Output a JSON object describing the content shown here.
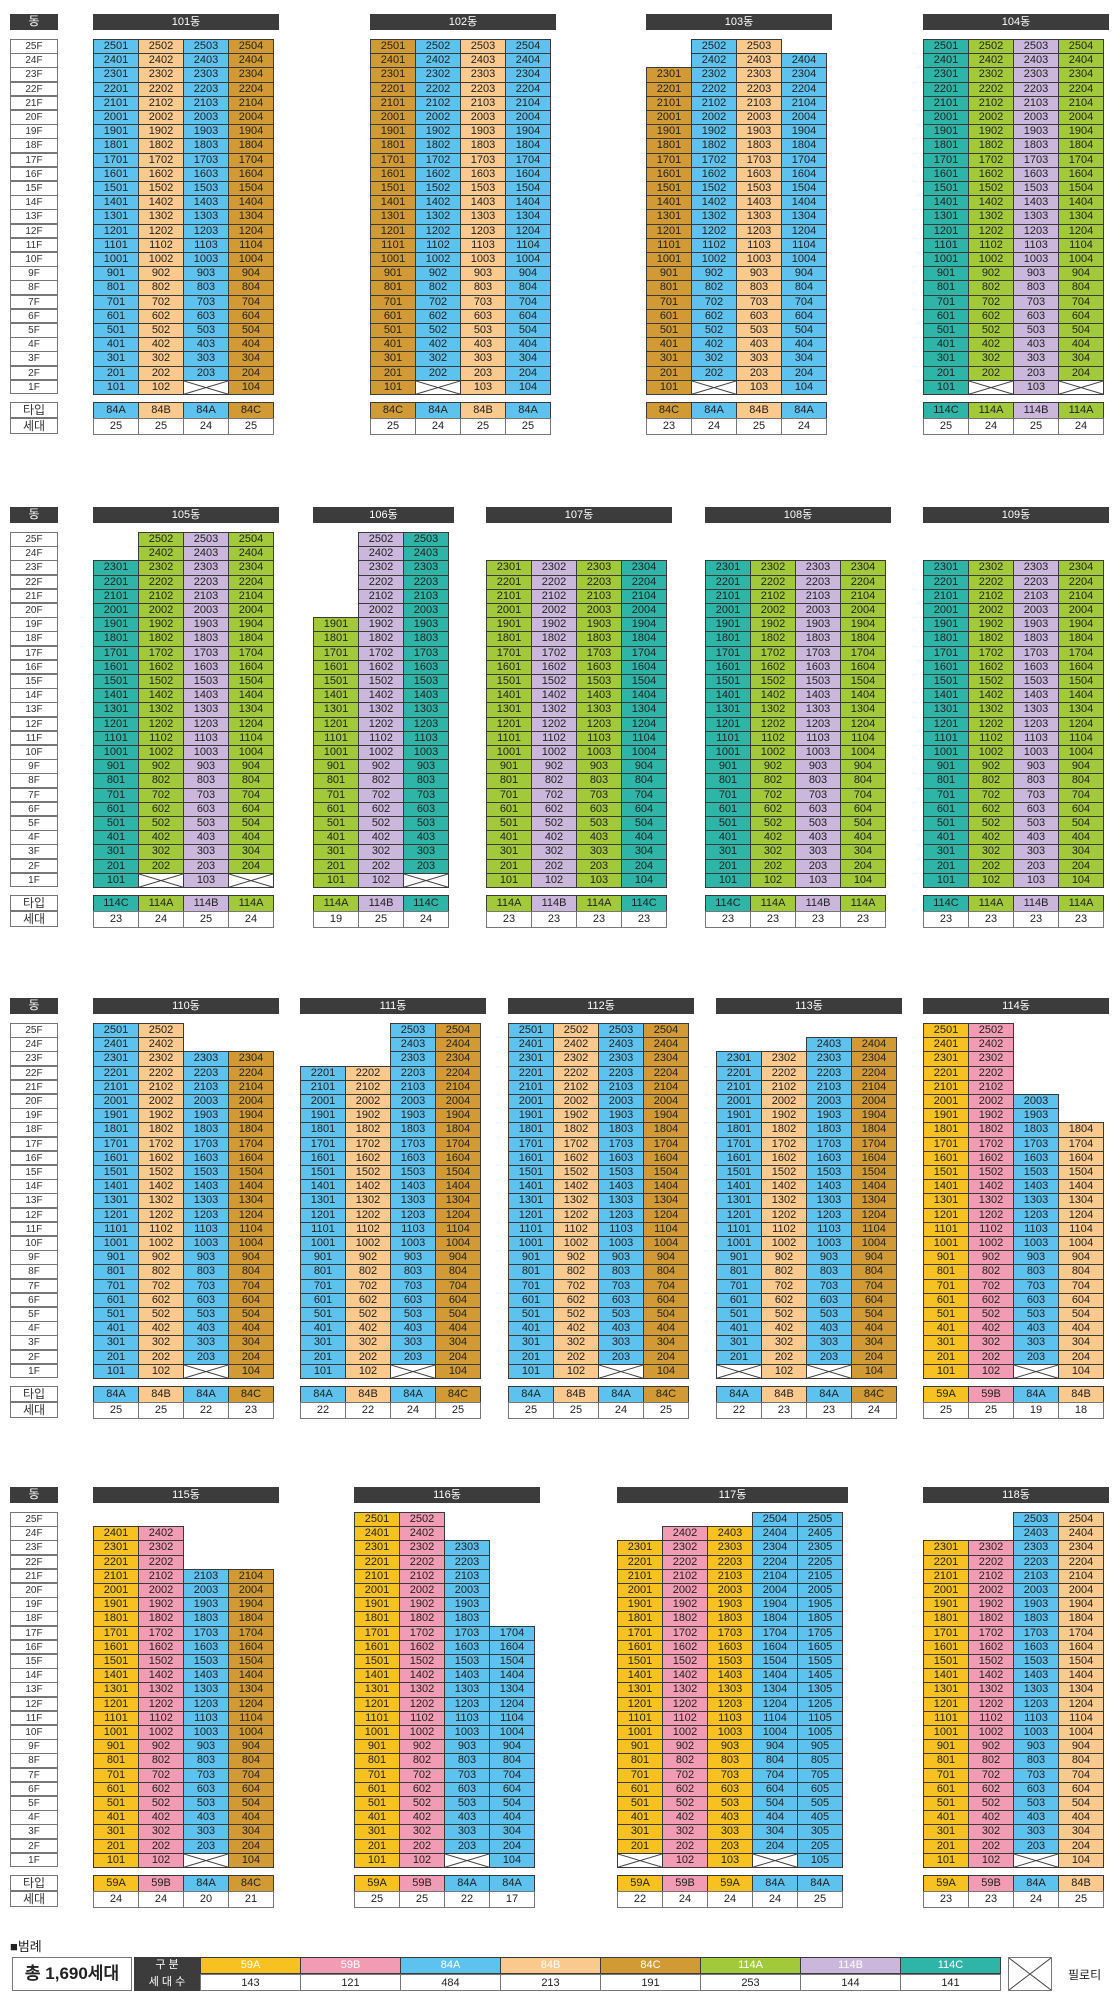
{
  "labels": {
    "dong": "동",
    "type": "타입",
    "households": "세대"
  },
  "floors": [
    "25F",
    "24F",
    "23F",
    "22F",
    "21F",
    "20F",
    "19F",
    "18F",
    "17F",
    "16F",
    "15F",
    "14F",
    "13F",
    "12F",
    "11F",
    "10F",
    "9F",
    "8F",
    "7F",
    "6F",
    "5F",
    "4F",
    "3F",
    "2F",
    "1F"
  ],
  "colors": {
    "59A": "#f7c221",
    "59B": "#f29bb4",
    "84A": "#5ec2ee",
    "84B": "#f9c98e",
    "84C": "#d19a34",
    "114A": "#a2c93a",
    "114B": "#cbb6dc",
    "114C": "#2fb5a8"
  },
  "buildings": [
    {
      "name": "101동",
      "lines": [
        {
          "type": "84A",
          "top": 25,
          "count": "25",
          "pilotis": false
        },
        {
          "type": "84B",
          "top": 25,
          "count": "25",
          "pilotis": false
        },
        {
          "type": "84A",
          "top": 25,
          "count": "24",
          "pilotis": true
        },
        {
          "type": "84C",
          "top": 25,
          "count": "25",
          "pilotis": false
        }
      ]
    },
    {
      "name": "102동",
      "lines": [
        {
          "type": "84C",
          "top": 25,
          "count": "25",
          "pilotis": false
        },
        {
          "type": "84A",
          "top": 25,
          "count": "24",
          "pilotis": true
        },
        {
          "type": "84B",
          "top": 25,
          "count": "25",
          "pilotis": false
        },
        {
          "type": "84A",
          "top": 25,
          "count": "25",
          "pilotis": false
        }
      ]
    },
    {
      "name": "103동",
      "lines": [
        {
          "type": "84C",
          "top": 23,
          "count": "23",
          "pilotis": false
        },
        {
          "type": "84A",
          "top": 25,
          "count": "24",
          "pilotis": true
        },
        {
          "type": "84B",
          "top": 25,
          "count": "25",
          "pilotis": false
        },
        {
          "type": "84A",
          "top": 24,
          "count": "24",
          "pilotis": false
        }
      ]
    },
    {
      "name": "104동",
      "lines": [
        {
          "type": "114C",
          "top": 25,
          "count": "25",
          "pilotis": false
        },
        {
          "type": "114A",
          "top": 25,
          "count": "24",
          "pilotis": true
        },
        {
          "type": "114B",
          "top": 25,
          "count": "25",
          "pilotis": false
        },
        {
          "type": "114A",
          "top": 25,
          "count": "24",
          "pilotis": true
        }
      ]
    },
    {
      "name": "105동",
      "lines": [
        {
          "type": "114C",
          "top": 23,
          "count": "23",
          "pilotis": false
        },
        {
          "type": "114A",
          "top": 25,
          "count": "24",
          "pilotis": true
        },
        {
          "type": "114B",
          "top": 25,
          "count": "25",
          "pilotis": false
        },
        {
          "type": "114A",
          "top": 25,
          "count": "24",
          "pilotis": true
        }
      ]
    },
    {
      "name": "106동",
      "lines": [
        {
          "type": "114A",
          "top": 19,
          "count": "19",
          "pilotis": false
        },
        {
          "type": "114B",
          "top": 25,
          "count": "25",
          "pilotis": false
        },
        {
          "type": "114C",
          "top": 25,
          "count": "24",
          "pilotis": true
        }
      ]
    },
    {
      "name": "107동",
      "lines": [
        {
          "type": "114A",
          "top": 23,
          "count": "23",
          "pilotis": false
        },
        {
          "type": "114B",
          "top": 23,
          "count": "23",
          "pilotis": false
        },
        {
          "type": "114A",
          "top": 23,
          "count": "23",
          "pilotis": false
        },
        {
          "type": "114C",
          "top": 23,
          "count": "23",
          "pilotis": false
        }
      ]
    },
    {
      "name": "108동",
      "lines": [
        {
          "type": "114C",
          "top": 23,
          "count": "23",
          "pilotis": false
        },
        {
          "type": "114A",
          "top": 23,
          "count": "23",
          "pilotis": false
        },
        {
          "type": "114B",
          "top": 23,
          "count": "23",
          "pilotis": false
        },
        {
          "type": "114A",
          "top": 23,
          "count": "23",
          "pilotis": false
        }
      ]
    },
    {
      "name": "109동",
      "lines": [
        {
          "type": "114C",
          "top": 23,
          "count": "23",
          "pilotis": false
        },
        {
          "type": "114A",
          "top": 23,
          "count": "23",
          "pilotis": false
        },
        {
          "type": "114B",
          "top": 23,
          "count": "23",
          "pilotis": false
        },
        {
          "type": "114A",
          "top": 23,
          "count": "23",
          "pilotis": false
        }
      ]
    },
    {
      "name": "110동",
      "lines": [
        {
          "type": "84A",
          "top": 25,
          "count": "25",
          "pilotis": false
        },
        {
          "type": "84B",
          "top": 25,
          "count": "25",
          "pilotis": false
        },
        {
          "type": "84A",
          "top": 23,
          "count": "22",
          "pilotis": true
        },
        {
          "type": "84C",
          "top": 23,
          "count": "23",
          "pilotis": false
        }
      ]
    },
    {
      "name": "111동",
      "lines": [
        {
          "type": "84A",
          "top": 22,
          "count": "22",
          "pilotis": false
        },
        {
          "type": "84B",
          "top": 22,
          "count": "22",
          "pilotis": false
        },
        {
          "type": "84A",
          "top": 25,
          "count": "24",
          "pilotis": true
        },
        {
          "type": "84C",
          "top": 25,
          "count": "25",
          "pilotis": false
        }
      ]
    },
    {
      "name": "112동",
      "lines": [
        {
          "type": "84A",
          "top": 25,
          "count": "25",
          "pilotis": false
        },
        {
          "type": "84B",
          "top": 25,
          "count": "25",
          "pilotis": false
        },
        {
          "type": "84A",
          "top": 25,
          "count": "24",
          "pilotis": true
        },
        {
          "type": "84C",
          "top": 25,
          "count": "25",
          "pilotis": false
        }
      ]
    },
    {
      "name": "113동",
      "lines": [
        {
          "type": "84A",
          "top": 23,
          "count": "22",
          "pilotis": true
        },
        {
          "type": "84B",
          "top": 23,
          "count": "23",
          "pilotis": false
        },
        {
          "type": "84A",
          "top": 24,
          "count": "23",
          "pilotis": true
        },
        {
          "type": "84C",
          "top": 24,
          "count": "24",
          "pilotis": false
        }
      ]
    },
    {
      "name": "114동",
      "lines": [
        {
          "type": "59A",
          "top": 25,
          "count": "25",
          "pilotis": false
        },
        {
          "type": "59B",
          "top": 25,
          "count": "25",
          "pilotis": false
        },
        {
          "type": "84A",
          "top": 20,
          "count": "19",
          "pilotis": true
        },
        {
          "type": "84B",
          "top": 18,
          "count": "18",
          "pilotis": false
        }
      ]
    },
    {
      "name": "115동",
      "lines": [
        {
          "type": "59A",
          "top": 24,
          "count": "24",
          "pilotis": false
        },
        {
          "type": "59B",
          "top": 24,
          "count": "24",
          "pilotis": false
        },
        {
          "type": "84A",
          "top": 21,
          "count": "20",
          "pilotis": true
        },
        {
          "type": "84C",
          "top": 21,
          "count": "21",
          "pilotis": false
        }
      ]
    },
    {
      "name": "116동",
      "lines": [
        {
          "type": "59A",
          "top": 25,
          "count": "25",
          "pilotis": false
        },
        {
          "type": "59B",
          "top": 25,
          "count": "25",
          "pilotis": false
        },
        {
          "type": "84A",
          "top": 23,
          "count": "22",
          "pilotis": true
        },
        {
          "type": "84A",
          "top": 17,
          "count": "17",
          "pilotis": false
        }
      ]
    },
    {
      "name": "117동",
      "lines": [
        {
          "type": "59A",
          "top": 23,
          "count": "22",
          "pilotis": true
        },
        {
          "type": "59B",
          "top": 24,
          "count": "24",
          "pilotis": false
        },
        {
          "type": "59A",
          "top": 24,
          "count": "24",
          "pilotis": false
        },
        {
          "type": "84A",
          "top": 25,
          "count": "24",
          "pilotis": true
        },
        {
          "type": "84A",
          "top": 25,
          "count": "25",
          "pilotis": false
        }
      ]
    },
    {
      "name": "118동",
      "lines": [
        {
          "type": "59A",
          "top": 23,
          "count": "23",
          "pilotis": false
        },
        {
          "type": "59B",
          "top": 23,
          "count": "23",
          "pilotis": false
        },
        {
          "type": "84A",
          "top": 25,
          "count": "24",
          "pilotis": true
        },
        {
          "type": "84B",
          "top": 25,
          "count": "25",
          "pilotis": false
        }
      ]
    }
  ],
  "legend": {
    "title": "■범례",
    "total": "총 1,690세대",
    "row_type_label": "구 분",
    "row_count_label": "세 대 수",
    "types": [
      "59A",
      "59B",
      "84A",
      "84B",
      "84C",
      "114A",
      "114B",
      "114C"
    ],
    "counts": [
      "143",
      "121",
      "484",
      "213",
      "191",
      "253",
      "144",
      "141"
    ],
    "pilotis_label": "필로티"
  }
}
